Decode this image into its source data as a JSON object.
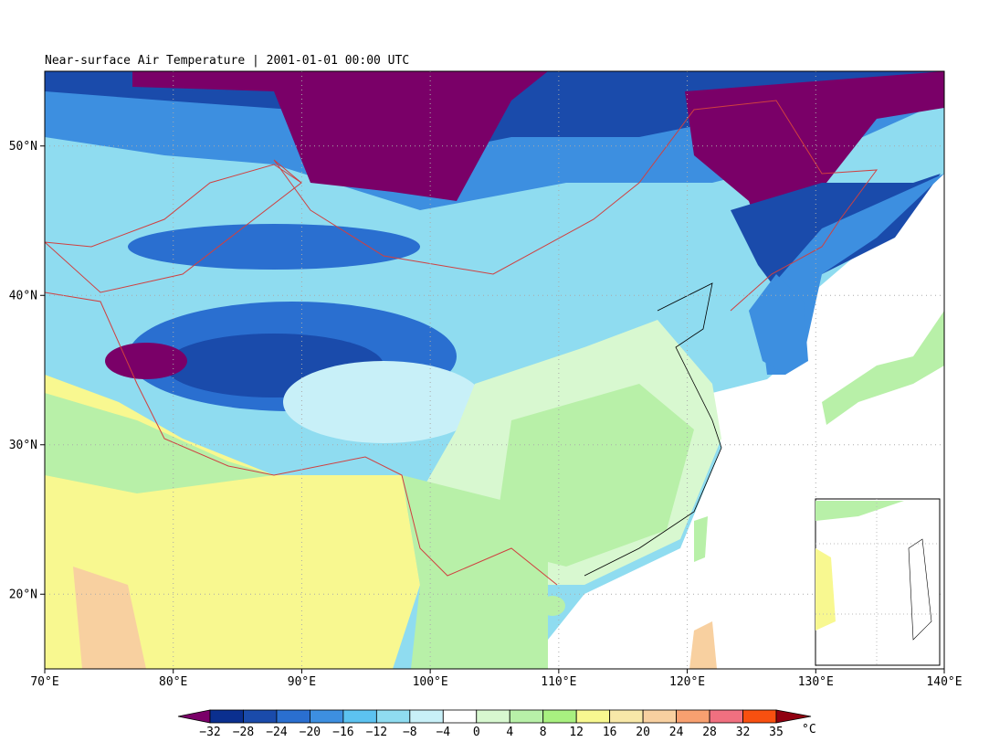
{
  "title": "Near-surface Air Temperature | 2001-01-01 00:00 UTC",
  "map": {
    "xlim": [
      70,
      140
    ],
    "ylim": [
      15,
      55
    ],
    "xticks": [
      {
        "value": 70,
        "label": "70°E"
      },
      {
        "value": 80,
        "label": "80°E"
      },
      {
        "value": 90,
        "label": "90°E"
      },
      {
        "value": 100,
        "label": "100°E"
      },
      {
        "value": 110,
        "label": "110°E"
      },
      {
        "value": 120,
        "label": "120°E"
      },
      {
        "value": 130,
        "label": "130°E"
      },
      {
        "value": 140,
        "label": "140°E"
      }
    ],
    "yticks": [
      {
        "value": 20,
        "label": "20°N"
      },
      {
        "value": 30,
        "label": "30°N"
      },
      {
        "value": 40,
        "label": "40°N"
      },
      {
        "value": 50,
        "label": "50°N"
      }
    ],
    "grid": true
  },
  "colorbar": {
    "labels": [
      "−32",
      "−28",
      "−24",
      "−20",
      "−16",
      "−12",
      "−8",
      "−4",
      "0",
      "4",
      "8",
      "12",
      "16",
      "20",
      "24",
      "28",
      "32",
      "35"
    ],
    "unit": "°C",
    "colors": [
      "#7a0068",
      "#0a2f8f",
      "#1a4bab",
      "#2a6fd0",
      "#3d8fe0",
      "#5cc2f0",
      "#8fdcf0",
      "#c8f0f8",
      "#ffffff",
      "#d8f8d0",
      "#b8f0a8",
      "#a8f080",
      "#f8f890",
      "#f8e8a8",
      "#f8d0a0",
      "#f8a070",
      "#f07080",
      "#f85010",
      "#900010"
    ]
  }
}
